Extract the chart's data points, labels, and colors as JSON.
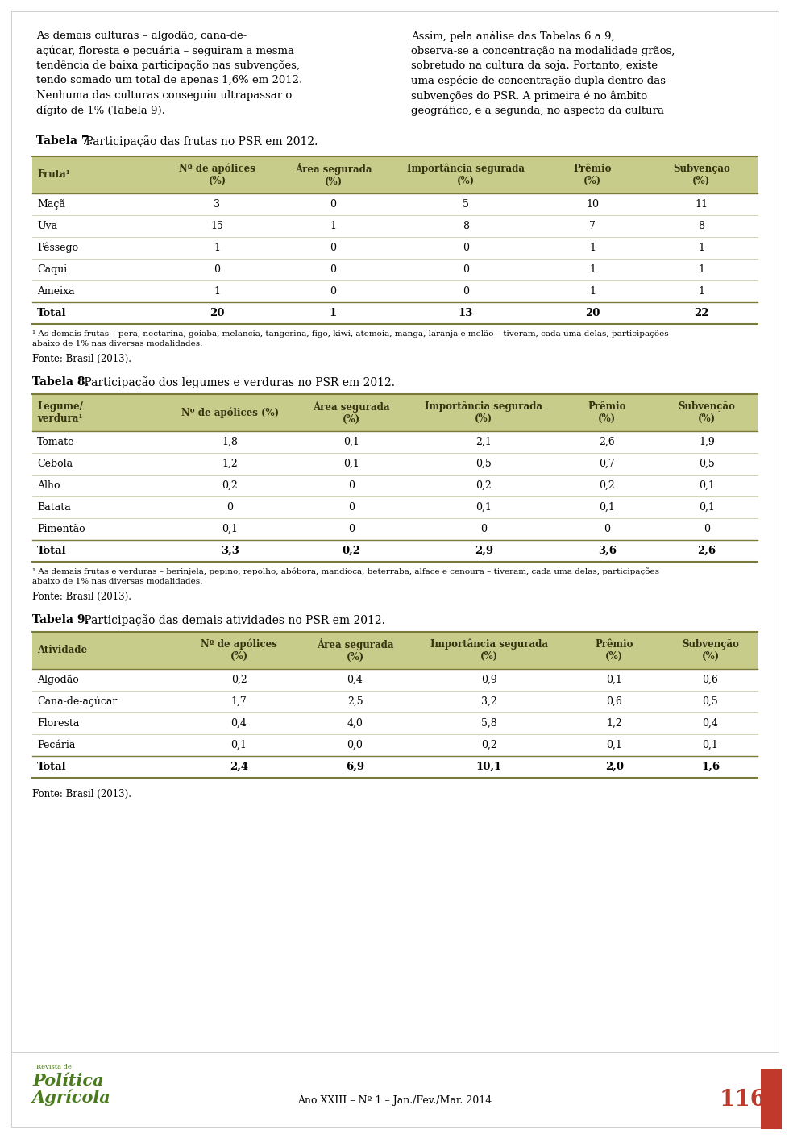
{
  "page_bg": "#ffffff",
  "text_color": "#000000",
  "header_bg": "#c8cc8a",
  "border_color": "#8a8a5a",
  "green_color": "#4a7a1e",
  "red_color": "#c0392b",
  "table7_title_bold": "Tabela 7.",
  "table7_title_rest": " Participação das frutas no PSR em 2012.",
  "table7_headers": [
    "Fruta¹",
    "Nº de apólices\n(%)",
    "Área segurada\n(%)",
    "Importância segurada\n(%)",
    "Prêmio\n(%)",
    "Subvenção\n(%)"
  ],
  "table7_rows": [
    [
      "Maçã",
      "3",
      "0",
      "5",
      "10",
      "11"
    ],
    [
      "Uva",
      "15",
      "1",
      "8",
      "7",
      "8"
    ],
    [
      "Pêssego",
      "1",
      "0",
      "0",
      "1",
      "1"
    ],
    [
      "Caqui",
      "0",
      "0",
      "0",
      "1",
      "1"
    ],
    [
      "Ameixa",
      "1",
      "0",
      "0",
      "1",
      "1"
    ]
  ],
  "table7_total": [
    "Total",
    "20",
    "1",
    "13",
    "20",
    "22"
  ],
  "table7_fn1": "¹ As demais frutas – pera, nectarina, goiaba, melancia, tangerina, figo, kiwi, atemoia, manga, laranja e melão – tiveram, cada uma delas, participações",
  "table7_fn2": "abaixo de 1% nas diversas modalidades.",
  "table7_source": "Fonte: Brasil (2013).",
  "table8_title_bold": "Tabela 8.",
  "table8_title_rest": " Participação dos legumes e verduras no PSR em 2012.",
  "table8_headers": [
    "Legume/\nverdura¹",
    "Nº de apólices (%)",
    "Área segurada\n(%)",
    "Importância segurada\n(%)",
    "Prêmio\n(%)",
    "Subvenção\n(%)"
  ],
  "table8_rows": [
    [
      "Tomate",
      "1,8",
      "0,1",
      "2,1",
      "2,6",
      "1,9"
    ],
    [
      "Cebola",
      "1,2",
      "0,1",
      "0,5",
      "0,7",
      "0,5"
    ],
    [
      "Alho",
      "0,2",
      "0",
      "0,2",
      "0,2",
      "0,1"
    ],
    [
      "Batata",
      "0",
      "0",
      "0,1",
      "0,1",
      "0,1"
    ],
    [
      "Pimentão",
      "0,1",
      "0",
      "0",
      "0",
      "0"
    ]
  ],
  "table8_total": [
    "Total",
    "3,3",
    "0,2",
    "2,9",
    "3,6",
    "2,6"
  ],
  "table8_fn1": "¹ As demais frutas e verduras – berinjela, pepino, repolho, abóbora, mandioca, beterraba, alface e cenoura – tiveram, cada uma delas, participações",
  "table8_fn2": "abaixo de 1% nas diversas modalidades.",
  "table8_source": "Fonte: Brasil (2013).",
  "table9_title_bold": "Tabela 9.",
  "table9_title_rest": " Participação das demais atividades no PSR em 2012.",
  "table9_headers": [
    "Atividade",
    "Nº de apólices\n(%)",
    "Área segurada\n(%)",
    "Importância segurada\n(%)",
    "Prêmio\n(%)",
    "Subvenção\n(%)"
  ],
  "table9_rows": [
    [
      "Algodão",
      "0,2",
      "0,4",
      "0,9",
      "0,1",
      "0,6"
    ],
    [
      "Cana-de-açúcar",
      "1,7",
      "2,5",
      "3,2",
      "0,6",
      "0,5"
    ],
    [
      "Floresta",
      "0,4",
      "4,0",
      "5,8",
      "1,2",
      "0,4"
    ],
    [
      "Pecária",
      "0,1",
      "0,0",
      "0,2",
      "0,1",
      "0,1"
    ]
  ],
  "table9_total": [
    "Total",
    "2,4",
    "6,9",
    "10,1",
    "2,0",
    "1,6"
  ],
  "table9_source": "Fonte: Brasil (2013).",
  "left_lines": [
    "As demais culturas – algodão, cana-de-",
    "açúcar, floresta e pecuária – seguiram a mesma",
    "tendência de baixa participação nas subvenções,",
    "tendo somado um total de apenas 1,6% em 2012.",
    "Nenhuma das culturas conseguiu ultrapassar o",
    "dígito de 1% (Tabela 9)."
  ],
  "right_lines": [
    "Assim, pela análise das Tabelas 6 a 9,",
    "observa-se a concentração na modalidade grãos,",
    "sobretudo na cultura da soja. Portanto, existe",
    "uma espécie de concentração dupla dentro das",
    "subvenções do PSR. A primeira é no âmbito",
    "geográfico, e a segunda, no aspecto da cultura"
  ],
  "footer_text": "Ano XXIII – Nº 1 – Jan./Fev./Mar. 2014",
  "footer_page": "116",
  "logo_line1": "Revista de",
  "logo_line2": "Política",
  "logo_line3": "Agrícola"
}
